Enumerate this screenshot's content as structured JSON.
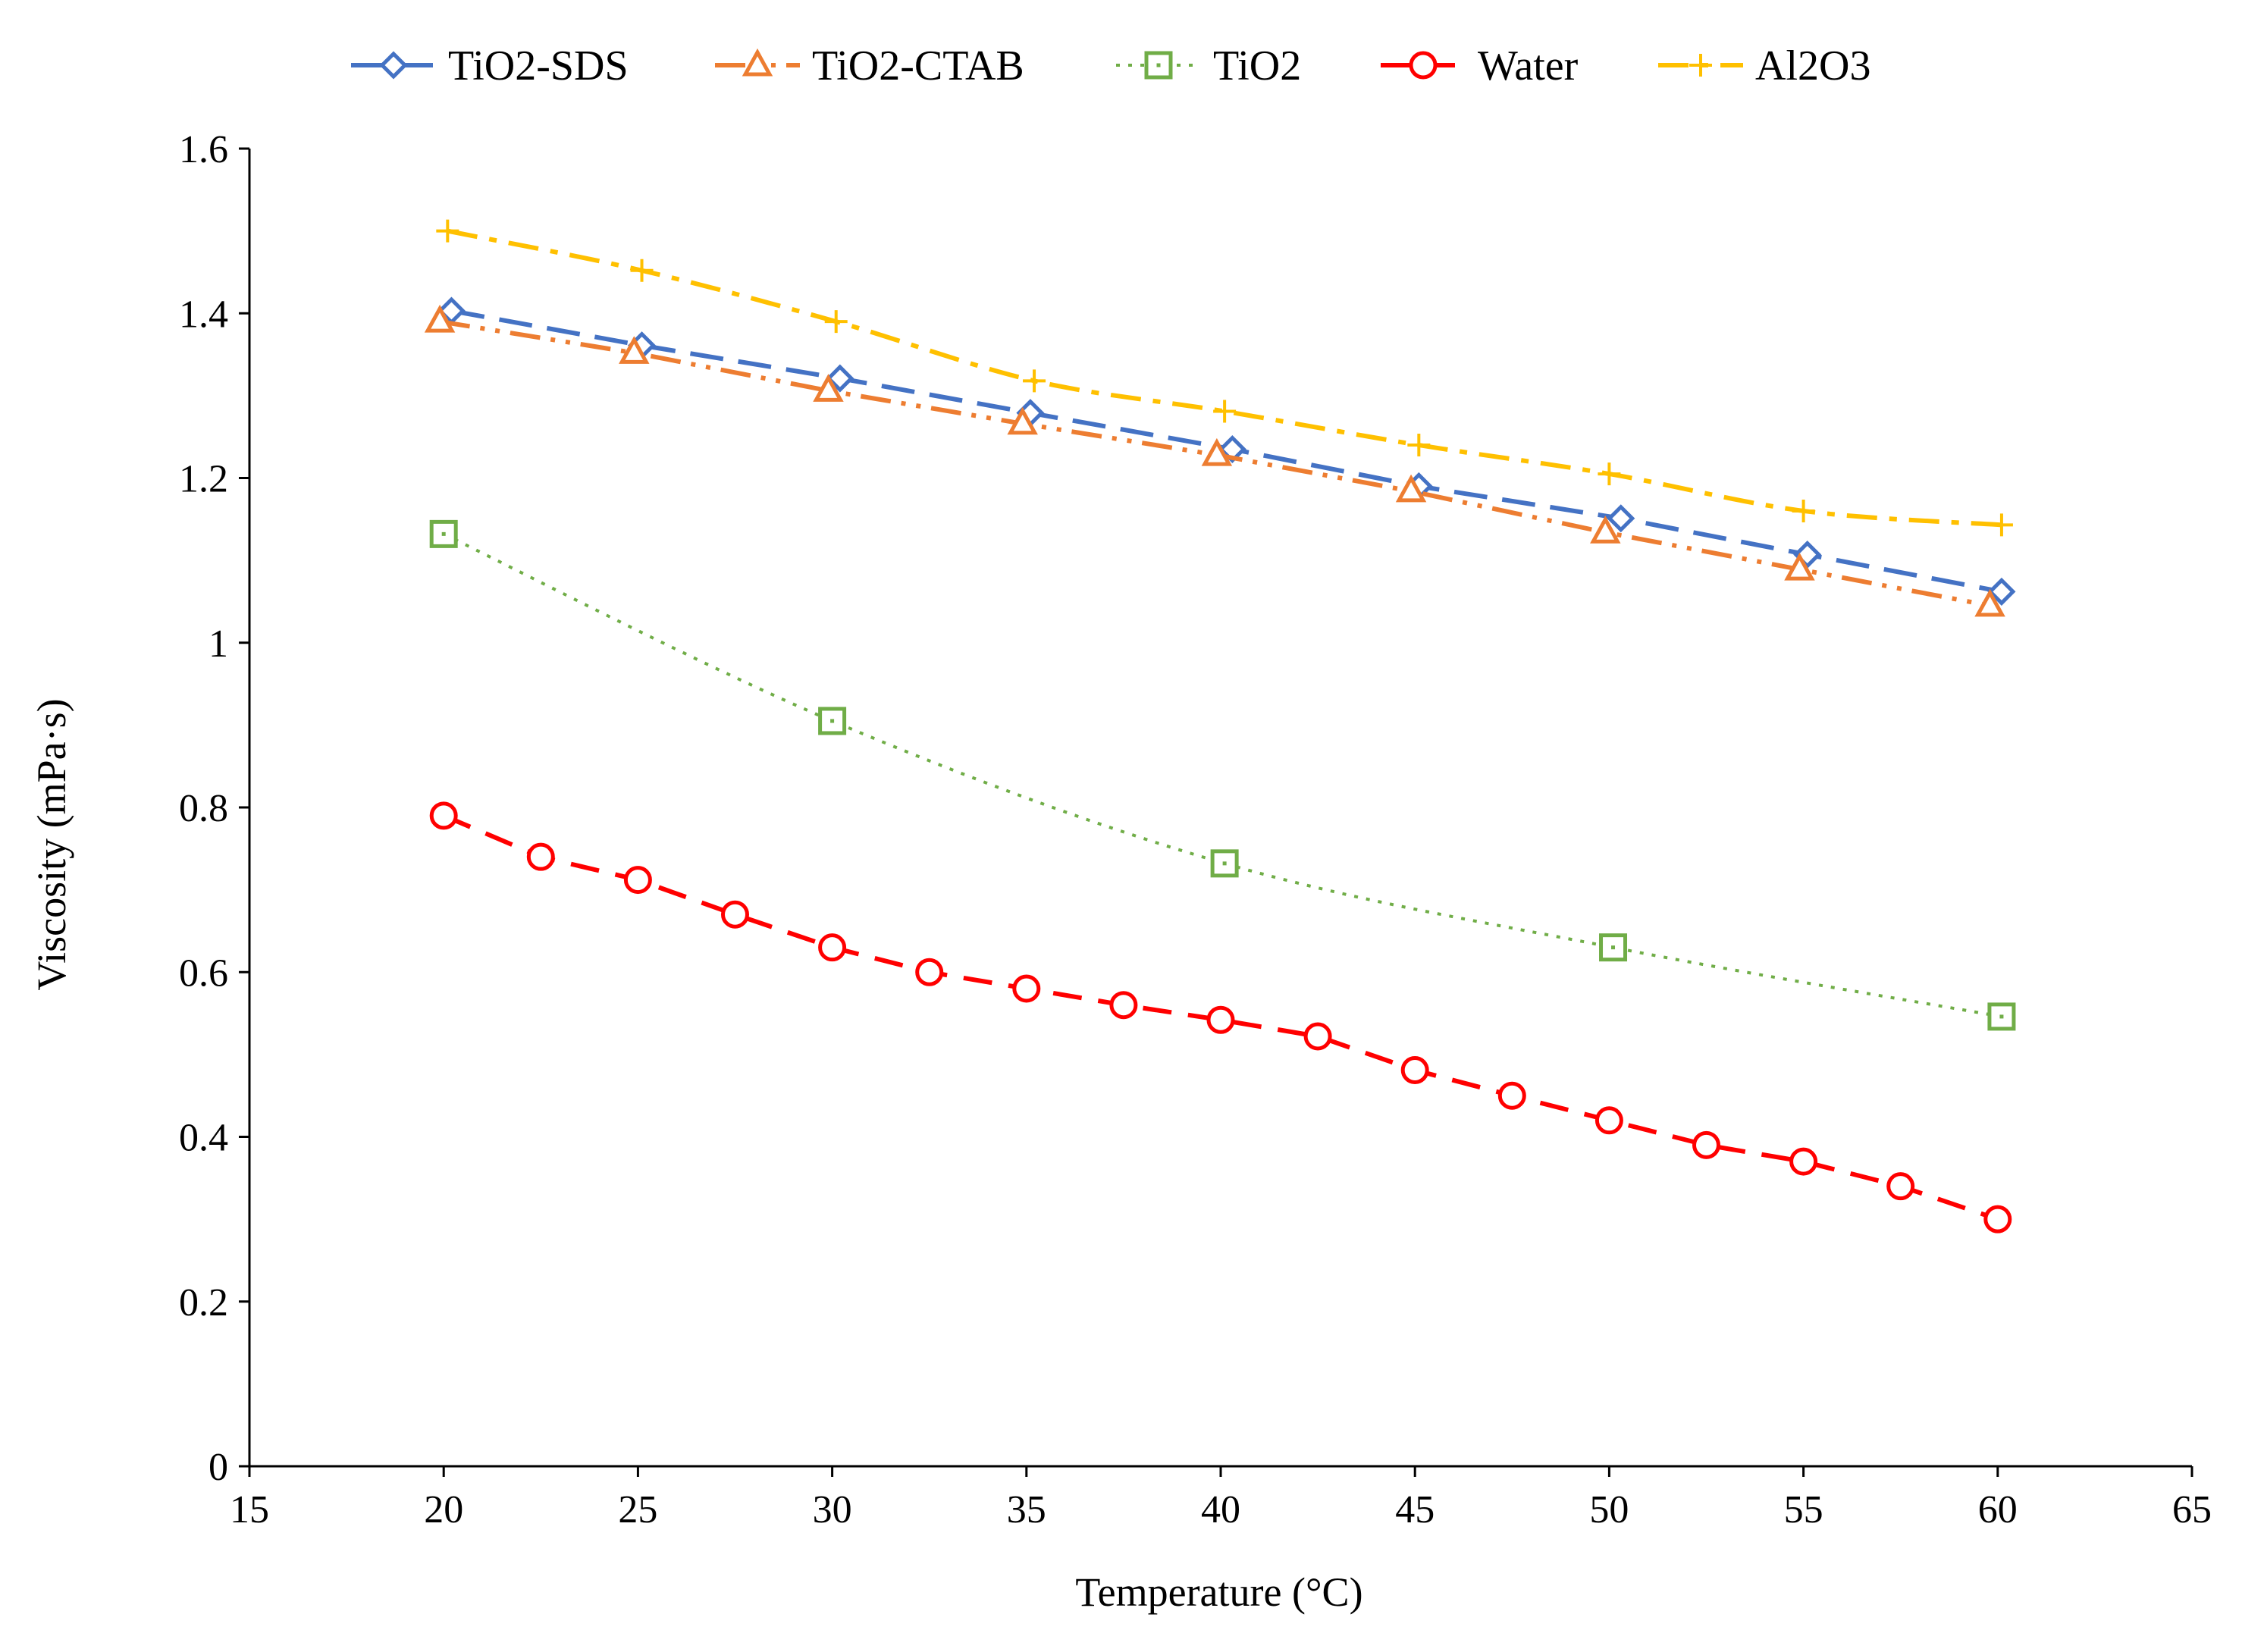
{
  "chart_data": {
    "type": "line",
    "title": "",
    "xlabel": "Temperature (°C)",
    "ylabel": "Viscosity (mPa·s)",
    "xlim": [
      15,
      65
    ],
    "ylim": [
      0,
      1.6
    ],
    "x_ticks": [
      15,
      20,
      25,
      30,
      35,
      40,
      45,
      50,
      55,
      60,
      65
    ],
    "y_ticks": [
      0,
      0.2,
      0.4,
      0.6,
      0.8,
      1,
      1.2,
      1.4,
      1.6
    ],
    "grid": false,
    "legend": "top",
    "series": [
      {
        "name": "TiO2-SDS",
        "color": "#4472C4",
        "marker": "diamond",
        "dash": "long-dash",
        "smooth": false,
        "x": [
          20.2,
          25.1,
          30.2,
          35.1,
          40.3,
          45.1,
          50.3,
          55.1,
          60.1
        ],
        "y": [
          1.403,
          1.361,
          1.321,
          1.279,
          1.235,
          1.19,
          1.151,
          1.107,
          1.062
        ]
      },
      {
        "name": "TiO2-CTAB",
        "color": "#ED7D31",
        "marker": "triangle",
        "dash": "long-dash-dot-dot",
        "smooth": false,
        "x": [
          19.9,
          24.9,
          29.9,
          34.9,
          39.9,
          44.9,
          49.9,
          54.9,
          59.8
        ],
        "y": [
          1.39,
          1.352,
          1.306,
          1.266,
          1.228,
          1.184,
          1.134,
          1.089,
          1.045
        ]
      },
      {
        "name": "TiO2",
        "color": "#70AD47",
        "marker": "square",
        "dash": "dotted",
        "smooth": true,
        "x": [
          20,
          30,
          40.1,
          50.1,
          60.1
        ],
        "y": [
          1.132,
          0.905,
          0.732,
          0.63,
          0.546
        ]
      },
      {
        "name": "Water",
        "color": "#FF0000",
        "marker": "circle",
        "dash": "dashed",
        "smooth": false,
        "x": [
          20,
          22.5,
          25,
          27.5,
          30,
          32.5,
          35,
          37.5,
          40,
          42.5,
          45,
          47.5,
          50,
          52.5,
          55,
          57.5,
          60
        ],
        "y": [
          0.79,
          0.74,
          0.712,
          0.67,
          0.63,
          0.6,
          0.58,
          0.56,
          0.542,
          0.522,
          0.481,
          0.45,
          0.42,
          0.39,
          0.37,
          0.34,
          0.3
        ]
      },
      {
        "name": "Al2O3",
        "color": "#FFC000",
        "marker": "plus",
        "dash": "dash-dot",
        "smooth": true,
        "x": [
          20.1,
          25.1,
          30.1,
          35.2,
          40.1,
          45.1,
          50,
          55,
          60.1
        ],
        "y": [
          1.5,
          1.452,
          1.39,
          1.318,
          1.281,
          1.24,
          1.205,
          1.16,
          1.143
        ]
      }
    ]
  }
}
